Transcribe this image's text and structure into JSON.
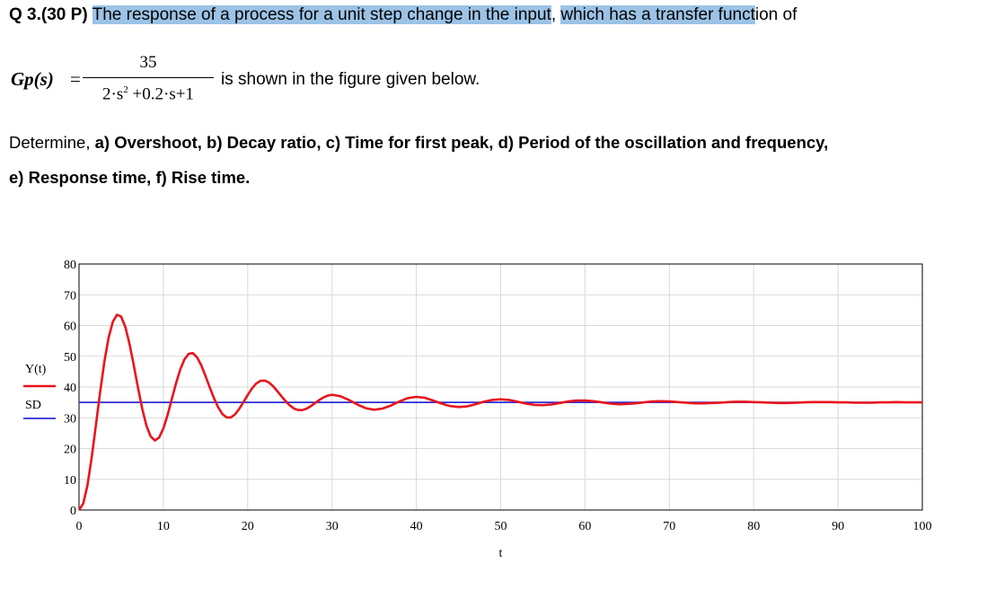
{
  "question": {
    "number": "Q 3.(30 P)",
    "text_highlighted_1": "The response of a process for a unit step change in the input",
    "text_comma": ",",
    "text_highlighted_2": "which has a transfer funct",
    "text_tail": "ion of"
  },
  "equation": {
    "label": "Gp(s)",
    "equals": "=",
    "numerator": "35",
    "denominator_a": "2·s",
    "denominator_exp": "2",
    "denominator_b": "+0.2·s+1",
    "tail": "is shown in the figure given below."
  },
  "task": {
    "intro": "Determine,",
    "a": "a) Overshoot,",
    "b": "b) Decay ratio,",
    "c": "c) Time for first peak,",
    "d": "d) Period of the oscillation and frequency,",
    "e": "e) Response time,",
    "f": "f) Rise time."
  },
  "chart_data": {
    "type": "line",
    "title": "",
    "xlabel": "t",
    "ylabel": "",
    "xlim": [
      0,
      100
    ],
    "ylim": [
      0,
      80
    ],
    "x_ticks": [
      0,
      10,
      20,
      30,
      40,
      50,
      60,
      70,
      80,
      90,
      100
    ],
    "y_ticks": [
      0,
      10,
      20,
      30,
      40,
      50,
      60,
      70,
      80
    ],
    "grid": true,
    "legend": "left",
    "series": [
      {
        "name": "Y(t)",
        "color": "#e8141c",
        "x": [
          0,
          0.5,
          1,
          1.5,
          2,
          2.5,
          3,
          3.5,
          4,
          4.5,
          5,
          5.5,
          6,
          6.5,
          7,
          7.5,
          8,
          8.5,
          9,
          9.5,
          10,
          10.5,
          11,
          11.5,
          12,
          12.5,
          13,
          13.5,
          14,
          14.5,
          15,
          15.5,
          16,
          16.5,
          17,
          17.5,
          18,
          18.5,
          19,
          19.5,
          20,
          20.5,
          21,
          21.5,
          22,
          22.5,
          23,
          23.5,
          24,
          24.5,
          25,
          25.5,
          26,
          26.5,
          27,
          27.5,
          28,
          28.5,
          29,
          29.5,
          30,
          31,
          32,
          33,
          34,
          35,
          36,
          37,
          38,
          39,
          40,
          41,
          42,
          43,
          44,
          45,
          46,
          47,
          48,
          49,
          50,
          51,
          52,
          53,
          54,
          55,
          56,
          57,
          58,
          59,
          60,
          61,
          62,
          63,
          64,
          65,
          66,
          67,
          68,
          69,
          70,
          71,
          72,
          73,
          74,
          75,
          76,
          77,
          78,
          79,
          80,
          81,
          82,
          83,
          84,
          85,
          86,
          87,
          88,
          89,
          90,
          91,
          92,
          93,
          94,
          95,
          96,
          97,
          98,
          99,
          100
        ],
        "values": [
          0,
          2.1,
          8.1,
          17.1,
          27.6,
          38.4,
          48.2,
          56.0,
          61.2,
          63.5,
          62.9,
          59.5,
          53.9,
          47.0,
          39.7,
          32.9,
          27.4,
          23.9,
          22.6,
          23.6,
          26.5,
          30.9,
          36.1,
          41.2,
          45.7,
          49.0,
          50.8,
          51.0,
          49.6,
          47.0,
          43.6,
          39.9,
          36.4,
          33.4,
          31.2,
          30.1,
          30.1,
          31.1,
          32.9,
          35.1,
          37.4,
          39.5,
          41.1,
          42.0,
          42.1,
          41.5,
          40.3,
          38.7,
          37.0,
          35.4,
          34.0,
          33.0,
          32.5,
          32.5,
          33.0,
          33.8,
          34.8,
          35.8,
          36.6,
          37.2,
          37.5,
          37.0,
          35.8,
          34.3,
          33.1,
          32.6,
          33.0,
          34.0,
          35.3,
          36.4,
          36.8,
          36.5,
          35.6,
          34.6,
          33.8,
          33.5,
          33.7,
          34.4,
          35.2,
          35.8,
          36.0,
          35.8,
          35.2,
          34.6,
          34.2,
          34.1,
          34.3,
          34.8,
          35.3,
          35.6,
          35.6,
          35.4,
          35.0,
          34.6,
          34.4,
          34.5,
          34.7,
          35.0,
          35.3,
          35.4,
          35.3,
          35.1,
          34.9,
          34.7,
          34.7,
          34.8,
          34.9,
          35.1,
          35.2,
          35.2,
          35.1,
          35.0,
          34.9,
          34.8,
          34.8,
          34.9,
          35.0,
          35.1,
          35.1,
          35.1,
          35.0,
          35.0,
          34.9,
          34.9,
          34.9,
          35.0,
          35.0,
          35.1,
          35.0,
          35.0,
          35.0
        ]
      },
      {
        "name": "SD",
        "color": "#2b2bd6",
        "x": [
          0,
          100
        ],
        "values": [
          35,
          35
        ]
      }
    ]
  }
}
